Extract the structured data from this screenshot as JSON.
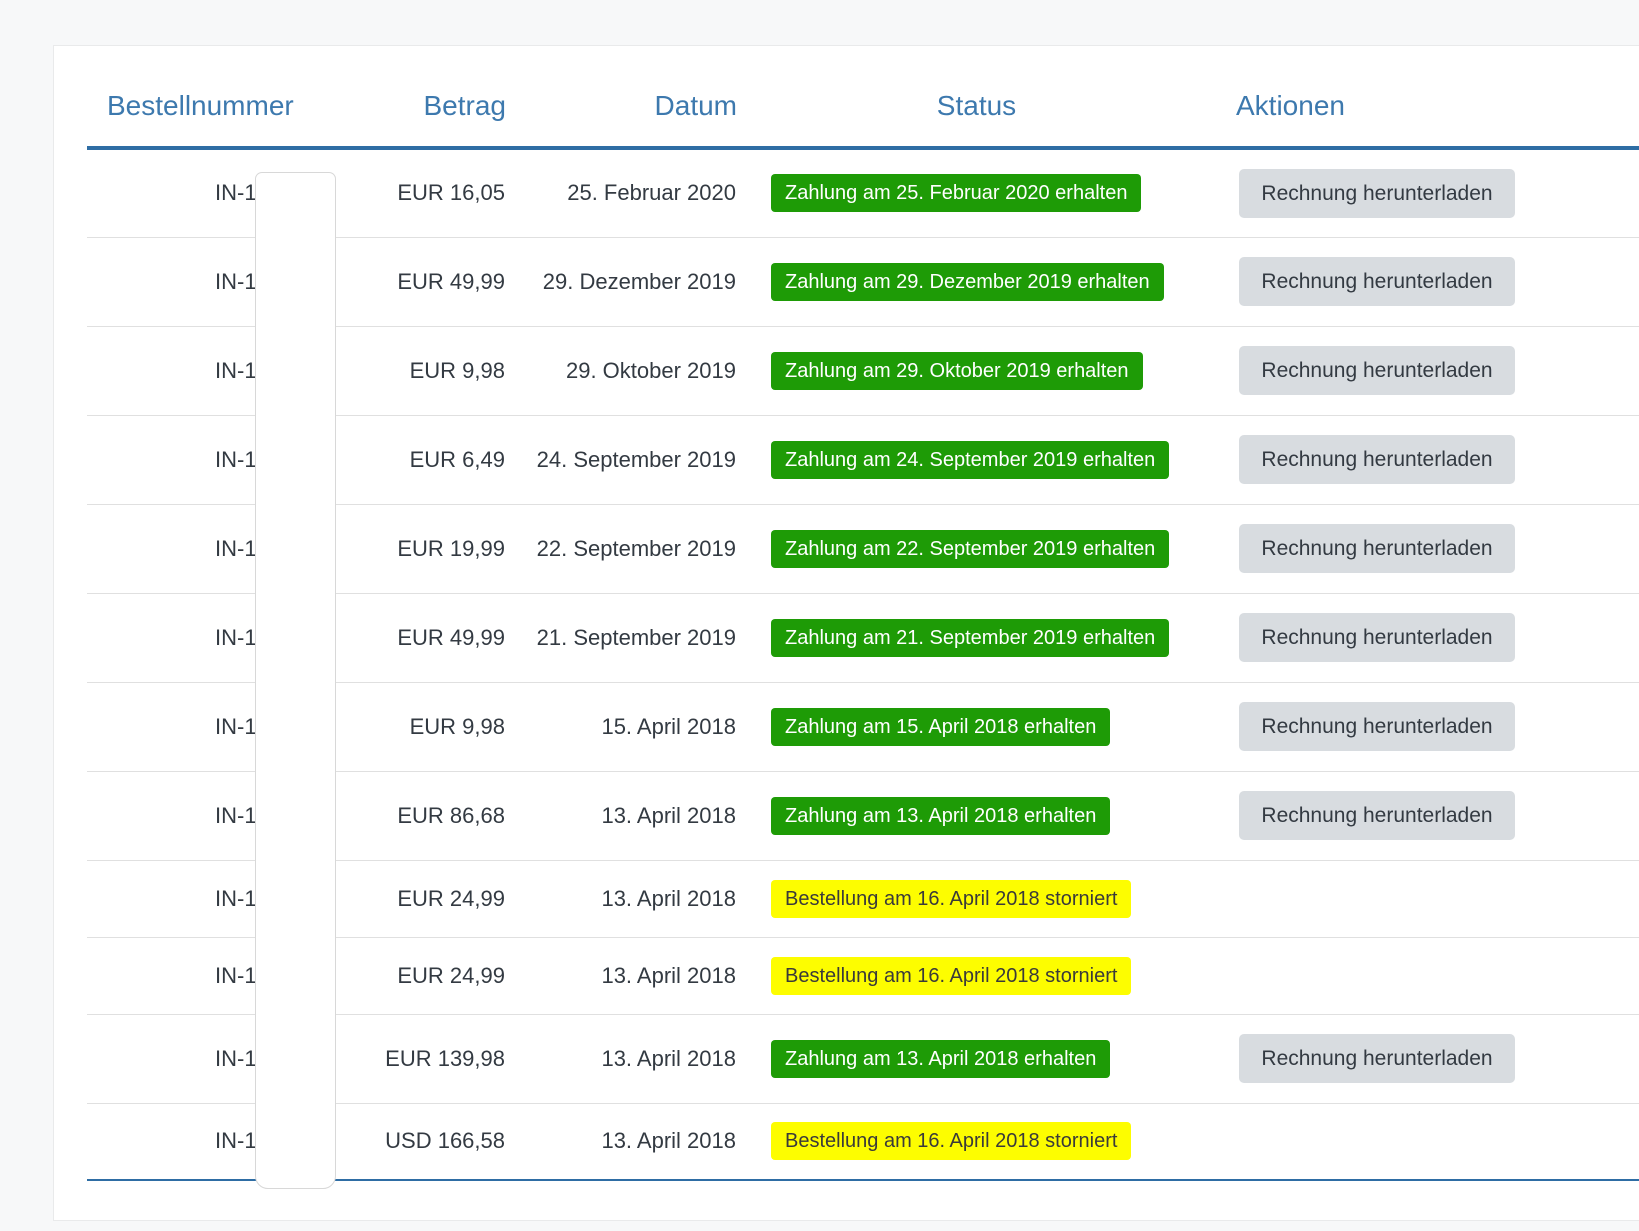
{
  "table": {
    "headers": [
      "Bestellnummer",
      "Betrag",
      "Datum",
      "Status",
      "Aktionen"
    ],
    "rows": [
      {
        "order_number": "IN-1",
        "amount": "EUR 16,05",
        "date": "25. Februar 2020",
        "status": {
          "text": "Zahlung am 25. Februar 2020 erhalten",
          "type": "success"
        },
        "action": "Rechnung herunterladen"
      },
      {
        "order_number": "IN-1",
        "amount": "EUR 49,99",
        "date": "29. Dezember 2019",
        "status": {
          "text": "Zahlung am 29. Dezember 2019 erhalten",
          "type": "success"
        },
        "action": "Rechnung herunterladen"
      },
      {
        "order_number": "IN-1",
        "amount": "EUR 9,98",
        "date": "29. Oktober 2019",
        "status": {
          "text": "Zahlung am 29. Oktober 2019 erhalten",
          "type": "success"
        },
        "action": "Rechnung herunterladen"
      },
      {
        "order_number": "IN-1",
        "amount": "EUR 6,49",
        "date": "24. September 2019",
        "status": {
          "text": "Zahlung am 24. September 2019 erhalten",
          "type": "success"
        },
        "action": "Rechnung herunterladen"
      },
      {
        "order_number": "IN-1",
        "amount": "EUR 19,99",
        "date": "22. September 2019",
        "status": {
          "text": "Zahlung am 22. September 2019 erhalten",
          "type": "success"
        },
        "action": "Rechnung herunterladen"
      },
      {
        "order_number": "IN-1",
        "amount": "EUR 49,99",
        "date": "21. September 2019",
        "status": {
          "text": "Zahlung am 21. September 2019 erhalten",
          "type": "success"
        },
        "action": "Rechnung herunterladen"
      },
      {
        "order_number": "IN-1",
        "amount": "EUR 9,98",
        "date": "15. April 2018",
        "status": {
          "text": "Zahlung am 15. April 2018 erhalten",
          "type": "success"
        },
        "action": "Rechnung herunterladen"
      },
      {
        "order_number": "IN-1",
        "amount": "EUR 86,68",
        "date": "13. April 2018",
        "status": {
          "text": "Zahlung am 13. April 2018 erhalten",
          "type": "success"
        },
        "action": "Rechnung herunterladen"
      },
      {
        "order_number": "IN-1",
        "amount": "EUR 24,99",
        "date": "13. April 2018",
        "status": {
          "text": "Bestellung am 16. April 2018 storniert",
          "type": "cancelled"
        },
        "action": null
      },
      {
        "order_number": "IN-1",
        "amount": "EUR 24,99",
        "date": "13. April 2018",
        "status": {
          "text": "Bestellung am 16. April 2018 storniert",
          "type": "cancelled"
        },
        "action": null
      },
      {
        "order_number": "IN-1",
        "amount": "EUR 139,98",
        "date": "13. April 2018",
        "status": {
          "text": "Zahlung am 13. April 2018 erhalten",
          "type": "success"
        },
        "action": "Rechnung herunterladen"
      },
      {
        "order_number": "IN-1",
        "amount": "USD 166,58",
        "date": "13. April 2018",
        "status": {
          "text": "Bestellung am 16. April 2018 storniert",
          "type": "cancelled"
        },
        "action": null
      }
    ]
  },
  "colors": {
    "header_text": "#3d79ae",
    "rule_blue": "#2e6da4",
    "status_success_bg": "#1e9b06",
    "status_success_text": "#ffffff",
    "status_cancelled_bg": "#fdfd00",
    "status_cancelled_text": "#3a3a3a",
    "button_bg": "#d8dce0",
    "button_text": "#333a42"
  }
}
